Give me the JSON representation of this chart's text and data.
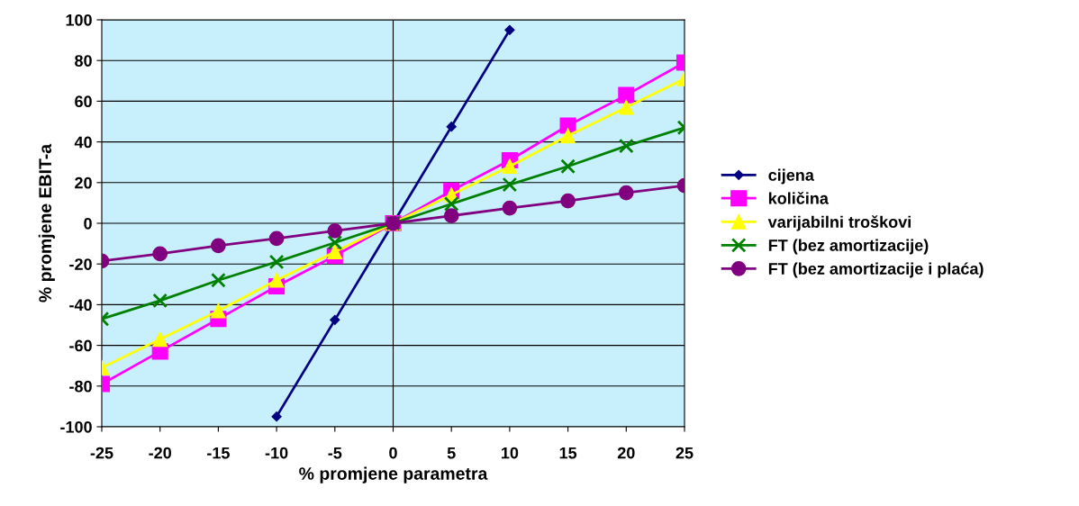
{
  "chart_data": {
    "type": "line",
    "xlabel": "% promjene parametra",
    "ylabel": "% promjene EBIT-a",
    "x": [
      -25,
      -20,
      -15,
      -10,
      -5,
      0,
      5,
      10,
      15,
      20,
      25
    ],
    "xlim": [
      -25,
      25
    ],
    "xticks": [
      -25,
      -20,
      -15,
      -10,
      -5,
      0,
      5,
      10,
      15,
      20,
      25
    ],
    "ylim": [
      -100,
      100
    ],
    "yticks": [
      -100,
      -80,
      -60,
      -40,
      -20,
      0,
      20,
      40,
      60,
      80,
      100
    ],
    "grid": "y",
    "legend": "right",
    "ref_lines": [
      {
        "axis": "x",
        "value": 0,
        "color": "#000000"
      }
    ],
    "series": [
      {
        "name": "cijena",
        "color": "#000080",
        "marker": "diamond",
        "values": [
          null,
          null,
          null,
          -95,
          -47.5,
          0,
          47.5,
          95,
          null,
          null,
          null
        ]
      },
      {
        "name": "količina",
        "color": "#ff00ff",
        "marker": "square",
        "values": [
          -79,
          -63,
          -47,
          -31,
          -16,
          0,
          16,
          31,
          48,
          63,
          79
        ]
      },
      {
        "name": "varijabilni troškovi",
        "color": "#ffff00",
        "marker": "triangle",
        "values": [
          -71,
          -57,
          -43,
          -28,
          -14,
          0,
          14,
          28,
          43,
          57,
          71
        ]
      },
      {
        "name": "FT (bez amortizacije)",
        "color": "#008000",
        "marker": "cross",
        "values": [
          -47,
          -38,
          -28,
          -19,
          -9.5,
          0,
          9.5,
          19,
          28,
          38,
          47
        ]
      },
      {
        "name": "FT (bez amortizacije i plaća)",
        "color": "#800080",
        "marker": "circle",
        "values": [
          -18.5,
          -15,
          -11,
          -7.5,
          -3.7,
          0,
          3.7,
          7.5,
          11,
          15,
          18.5
        ]
      }
    ]
  }
}
